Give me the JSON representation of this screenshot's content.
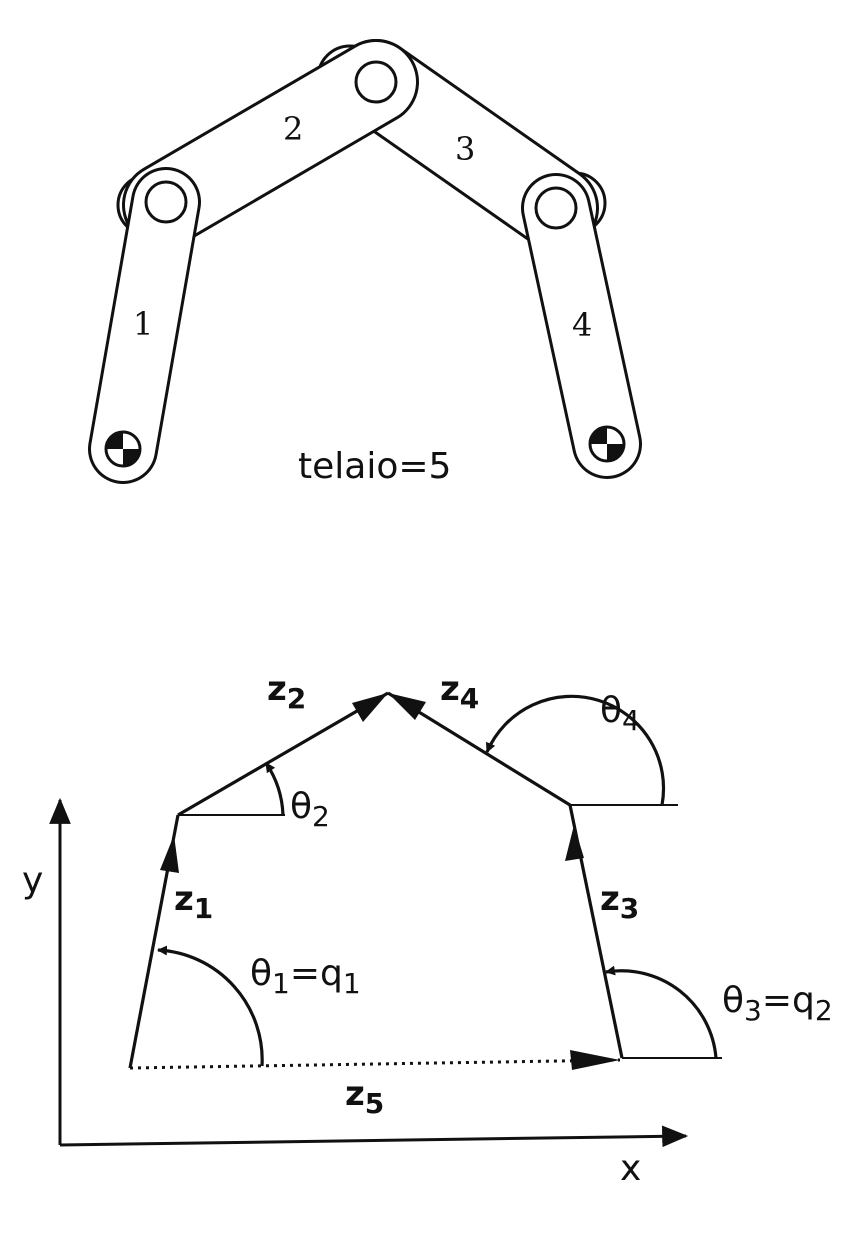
{
  "mechanism": {
    "links": [
      {
        "id": "1",
        "label": "1"
      },
      {
        "id": "2",
        "label": "2"
      },
      {
        "id": "3",
        "label": "3"
      },
      {
        "id": "4",
        "label": "4"
      }
    ],
    "frame_label": "telaio=5"
  },
  "vectors": {
    "z1": {
      "main": "z",
      "sub": "1"
    },
    "z2": {
      "main": "z",
      "sub": "2"
    },
    "z3": {
      "main": "z",
      "sub": "3"
    },
    "z4": {
      "main": "z",
      "sub": "4"
    },
    "z5": {
      "main": "z",
      "sub": "5"
    }
  },
  "angles": {
    "theta1": {
      "main": "θ",
      "sub": "1",
      "rest": "=q",
      "rest_sub": "1"
    },
    "theta2": {
      "main": "θ",
      "sub": "2"
    },
    "theta3": {
      "main": "θ",
      "sub": "3",
      "rest": "=q",
      "rest_sub": "2"
    },
    "theta4": {
      "main": "θ",
      "sub": "4"
    }
  },
  "axes": {
    "x_label": "x",
    "y_label": "y"
  }
}
